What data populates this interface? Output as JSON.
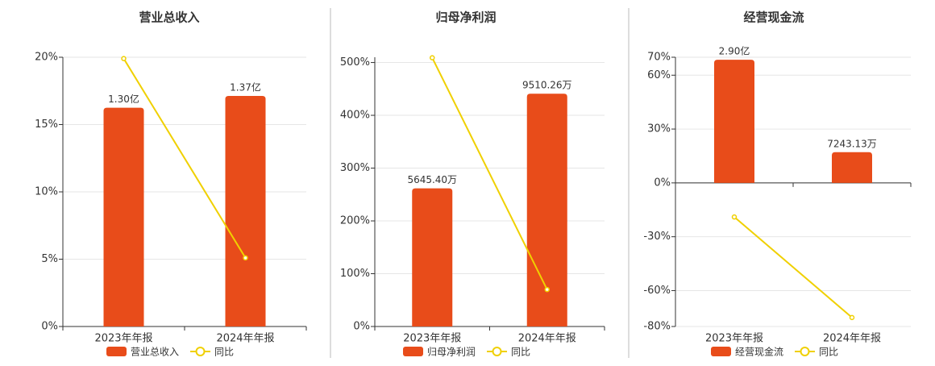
{
  "chart_data": [
    {
      "type": "bar",
      "title": "营业总收入",
      "categories": [
        "2023年年报",
        "2024年年报"
      ],
      "series": [
        {
          "name": "营业总收入",
          "type": "bar",
          "axis": "y2",
          "color": "#e84c1a",
          "values": [
            130000000,
            137000000
          ],
          "value_labels": [
            "1.30亿",
            "1.37亿"
          ]
        },
        {
          "name": "同比",
          "type": "line",
          "color": "#f0d000",
          "values": [
            19.9,
            5.1
          ]
        }
      ],
      "ylim": [
        0,
        20
      ],
      "yticks": [
        {
          "value": 0,
          "label": "0%"
        },
        {
          "value": 5,
          "label": "5%"
        },
        {
          "value": 10,
          "label": "10%"
        },
        {
          "value": 15,
          "label": "15%"
        },
        {
          "value": 20,
          "label": "20%"
        }
      ],
      "y2lim": [
        0,
        160000000
      ],
      "grid": true
    },
    {
      "type": "bar",
      "title": "归母净利润",
      "categories": [
        "2023年年报",
        "2024年年报"
      ],
      "series": [
        {
          "name": "归母净利润",
          "type": "bar",
          "axis": "y2",
          "color": "#e84c1a",
          "values": [
            56454000,
            95102600
          ],
          "value_labels": [
            "5645.40万",
            "9510.26万"
          ]
        },
        {
          "name": "同比",
          "type": "line",
          "color": "#f0d000",
          "values": [
            509,
            70
          ]
        }
      ],
      "ylim": [
        0,
        510
      ],
      "yticks": [
        {
          "value": 0,
          "label": "0%"
        },
        {
          "value": 100,
          "label": "100%"
        },
        {
          "value": 200,
          "label": "200%"
        },
        {
          "value": 300,
          "label": "300%"
        },
        {
          "value": 400,
          "label": "400%"
        },
        {
          "value": 500,
          "label": "500%"
        }
      ],
      "y2lim": [
        0,
        110000000
      ],
      "grid": true
    },
    {
      "type": "bar",
      "title": "经营现金流",
      "categories": [
        "2023年年报",
        "2024年年报"
      ],
      "series": [
        {
          "name": "经营现金流",
          "type": "bar",
          "axis": "y2",
          "color": "#e84c1a",
          "values": [
            290000000,
            72431300
          ],
          "value_labels": [
            "2.90亿",
            "7243.13万"
          ]
        },
        {
          "name": "同比",
          "type": "line",
          "color": "#f0d000",
          "values": [
            -19,
            -75
          ]
        }
      ],
      "ylim": [
        -80,
        70
      ],
      "yticks": [
        {
          "value": -80,
          "label": "-80%"
        },
        {
          "value": -60,
          "label": "-60%"
        },
        {
          "value": -30,
          "label": "-30%"
        },
        {
          "value": 0,
          "label": "0%"
        },
        {
          "value": 30,
          "label": "30%"
        },
        {
          "value": 60,
          "label": "60%"
        },
        {
          "value": 70,
          "label": "70%"
        }
      ],
      "y2lim": [
        -338000000,
        296000000
      ],
      "grid": true
    }
  ]
}
